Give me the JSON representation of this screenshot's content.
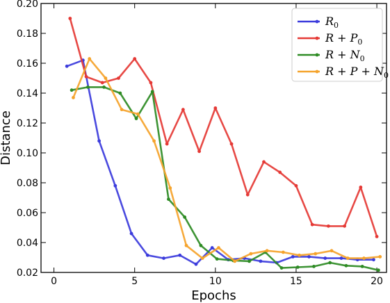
{
  "chart_data": {
    "type": "line",
    "xlabel": "Epochs",
    "ylabel": "Distance",
    "xlim": [
      -0.8,
      20.6
    ],
    "ylim": [
      0.02,
      0.2
    ],
    "xticks": [
      "0",
      "5",
      "10",
      "15",
      "20"
    ],
    "yticks": [
      "0.02",
      "0.04",
      "0.06",
      "0.08",
      "0.10",
      "0.12",
      "0.14",
      "0.16",
      "0.18",
      "0.20"
    ],
    "grid": false,
    "legend_position": "top-right",
    "series": [
      {
        "name": "R",
        "sub": "0",
        "color": "#3b3bdc",
        "x": [
          0.8,
          1.8,
          2.8,
          3.8,
          4.8,
          5.8,
          6.8,
          7.8,
          8.8,
          9.8,
          10.8,
          11.8,
          12.8,
          13.8,
          14.8,
          15.8,
          16.8,
          17.8,
          18.8,
          19.8
        ],
        "y": [
          0.158,
          0.162,
          0.108,
          0.078,
          0.046,
          0.0315,
          0.0295,
          0.0315,
          0.0255,
          0.0365,
          0.0285,
          0.0295,
          0.0275,
          0.0265,
          0.0305,
          0.0305,
          0.0295,
          0.0295,
          0.0285,
          0.0285
        ]
      },
      {
        "name": "R+P",
        "sub": "0",
        "color": "#e53935",
        "x": [
          1,
          2,
          3,
          4,
          5,
          6,
          7,
          8,
          9,
          10,
          11,
          12,
          13,
          14,
          15,
          16,
          17,
          18,
          19,
          20
        ],
        "y": [
          0.19,
          0.151,
          0.147,
          0.15,
          0.163,
          0.147,
          0.106,
          0.129,
          0.101,
          0.13,
          0.106,
          0.072,
          0.094,
          0.087,
          0.078,
          0.052,
          0.051,
          0.051,
          0.077,
          0.044
        ]
      },
      {
        "name": "R+N",
        "sub": "0",
        "color": "#2e8b24",
        "x": [
          1.1,
          2.1,
          3.1,
          4.1,
          5.1,
          6.1,
          7.1,
          8.1,
          9.1,
          10.1,
          11.1,
          12.1,
          13.1,
          14.1,
          15.1,
          16.1,
          17.1,
          18.1,
          19.1,
          20.1
        ],
        "y": [
          0.142,
          0.144,
          0.144,
          0.14,
          0.123,
          0.141,
          0.069,
          0.057,
          0.038,
          0.029,
          0.028,
          0.0275,
          0.0335,
          0.023,
          0.0235,
          0.024,
          0.0265,
          0.0245,
          0.024,
          0.0215
        ]
      },
      {
        "name": "R+P+N",
        "sub": "0",
        "color": "#f5a32b",
        "x": [
          1.2,
          2.2,
          3.2,
          4.2,
          5.2,
          6.2,
          7.2,
          8.2,
          9.2,
          10.2,
          11.2,
          12.2,
          13.2,
          14.2,
          15.2,
          16.2,
          17.2,
          18.2,
          19.2,
          20.2
        ],
        "y": [
          0.137,
          0.163,
          0.15,
          0.129,
          0.126,
          0.108,
          0.0765,
          0.038,
          0.0295,
          0.0365,
          0.0275,
          0.0325,
          0.0345,
          0.0335,
          0.0315,
          0.0325,
          0.0345,
          0.0295,
          0.0295,
          0.0305
        ]
      }
    ]
  }
}
